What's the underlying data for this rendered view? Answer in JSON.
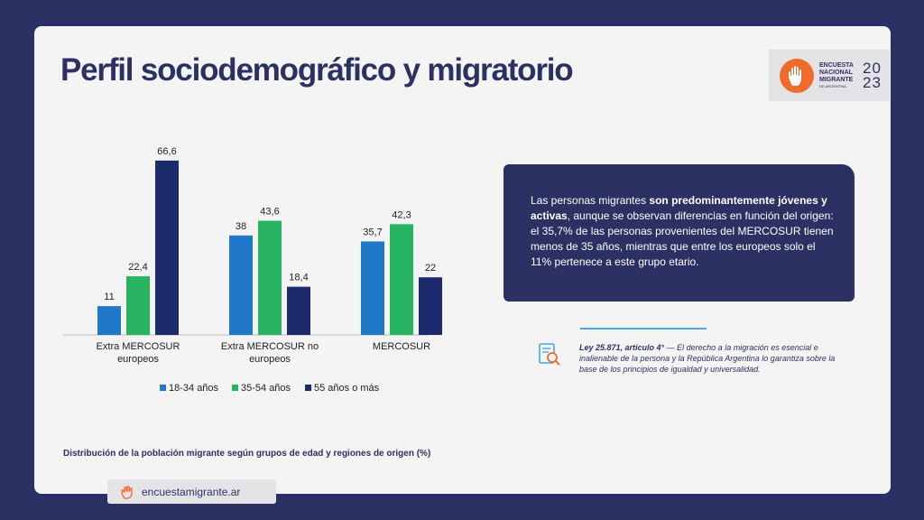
{
  "header": {
    "title": "Perfil sociodemográfico y migratorio",
    "logo": {
      "lines": [
        "ENCUESTA",
        "NACIONAL",
        "MIGRANTE"
      ],
      "subline": "DE ARGENTINA",
      "year_top": "20",
      "year_bottom": "23",
      "icon": "hand-icon"
    }
  },
  "chart_data": {
    "type": "bar",
    "categories": [
      [
        "Extra MERCOSUR",
        "europeos"
      ],
      [
        "Extra MERCOSUR no",
        "europeos"
      ],
      [
        "MERCOSUR"
      ]
    ],
    "series": [
      {
        "name": "18-34 años",
        "color": "#1f78c8",
        "values": [
          11,
          38,
          35.7
        ],
        "labels": [
          "11",
          "38",
          "35,7"
        ]
      },
      {
        "name": "35-54 años",
        "color": "#27b35f",
        "values": [
          22.4,
          43.6,
          42.3
        ],
        "labels": [
          "22,4",
          "43,6",
          "42,3"
        ]
      },
      {
        "name": "55 años o más",
        "color": "#1b2a6b",
        "values": [
          66.6,
          18.4,
          22
        ],
        "labels": [
          "66,6",
          "18,4",
          "22"
        ]
      }
    ],
    "ylim": [
      0,
      70
    ],
    "legend": "bottom",
    "grid": false
  },
  "info": {
    "text_1": "Las personas migrantes ",
    "bold": "son predominantemente jóvenes y activas",
    "text_2": ", aunque se observan diferencias en función del origen: el 35,7% de las personas provenientes del MERCOSUR tienen menos de 35 años, mientras que entre los europeos solo el 11% pertenece a este grupo etario."
  },
  "law": {
    "title": "Ley 25.871, artículo 4°",
    "body": " — El derecho a la migración es esencial e inalienable de la persona y la República Argentina lo garantiza sobre la base de los principios de igualdad y universalidad.",
    "icon": "document-search-icon"
  },
  "caption": "Distribución de la población migrante según grupos de edad y regiones de origen (%)",
  "footer": {
    "url": "encuestamigrante.ar",
    "icon": "hand-icon"
  },
  "colors": {
    "background": "#2c3163",
    "card": "#f4f4f4",
    "accent": "#ef6b2b",
    "divider": "#4aa8e0"
  }
}
